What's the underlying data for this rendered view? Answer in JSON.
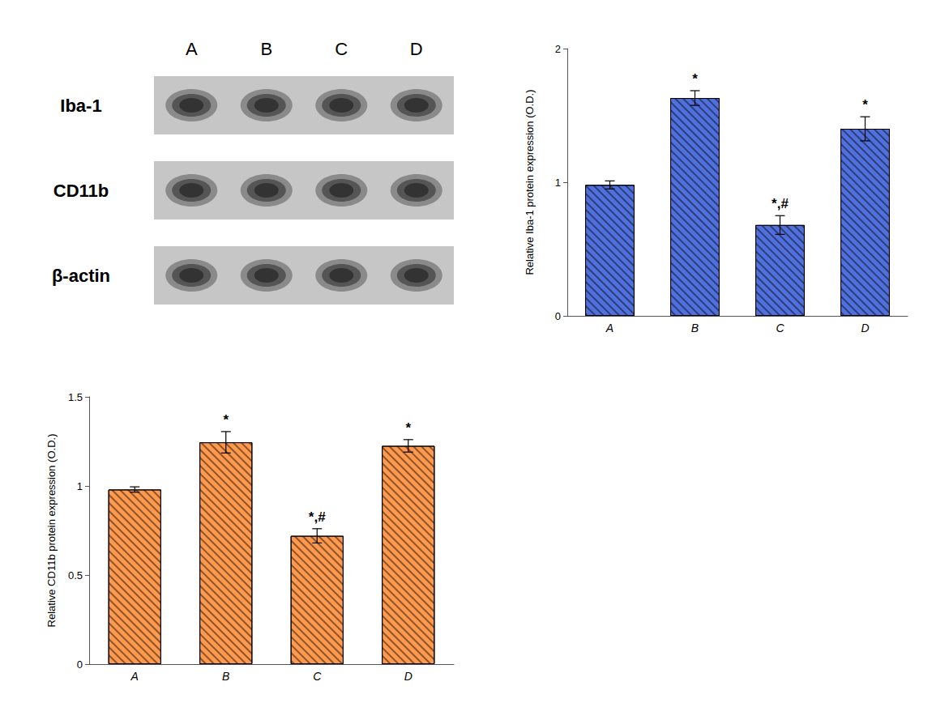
{
  "chart_data": [
    {
      "type": "blot",
      "categories": [
        "A",
        "B",
        "C",
        "D"
      ],
      "labels": [
        "Iba-1",
        "CD11b",
        "β-actin"
      ]
    },
    {
      "type": "bar",
      "categories": [
        "A",
        "B",
        "C",
        "D"
      ],
      "values": [
        0.98,
        1.63,
        0.68,
        1.4
      ],
      "errors": [
        0.03,
        0.055,
        0.07,
        0.09
      ],
      "annotations": [
        {
          "category": "B",
          "text": "*"
        },
        {
          "category": "C",
          "text": "*,#"
        },
        {
          "category": "D",
          "text": "*"
        }
      ],
      "ylabel": "Relative Iba-1 protein expression (O.D.)",
      "ylim": [
        0,
        2.0
      ],
      "yticks": [
        0,
        1,
        2
      ],
      "grid": false
    },
    {
      "type": "bar",
      "categories": [
        "A",
        "B",
        "C",
        "D"
      ],
      "values": [
        0.98,
        1.245,
        0.72,
        1.225
      ],
      "errors": [
        0.015,
        0.06,
        0.04,
        0.035
      ],
      "annotations": [
        {
          "category": "B",
          "text": "*"
        },
        {
          "category": "C",
          "text": "*,#"
        },
        {
          "category": "D",
          "text": "*"
        }
      ],
      "ylabel": "Relative CD11b protein expression (O.D.)",
      "ylim": [
        0,
        1.5
      ],
      "yticks": [
        0,
        0.5,
        1,
        1.5
      ],
      "grid": false
    }
  ]
}
